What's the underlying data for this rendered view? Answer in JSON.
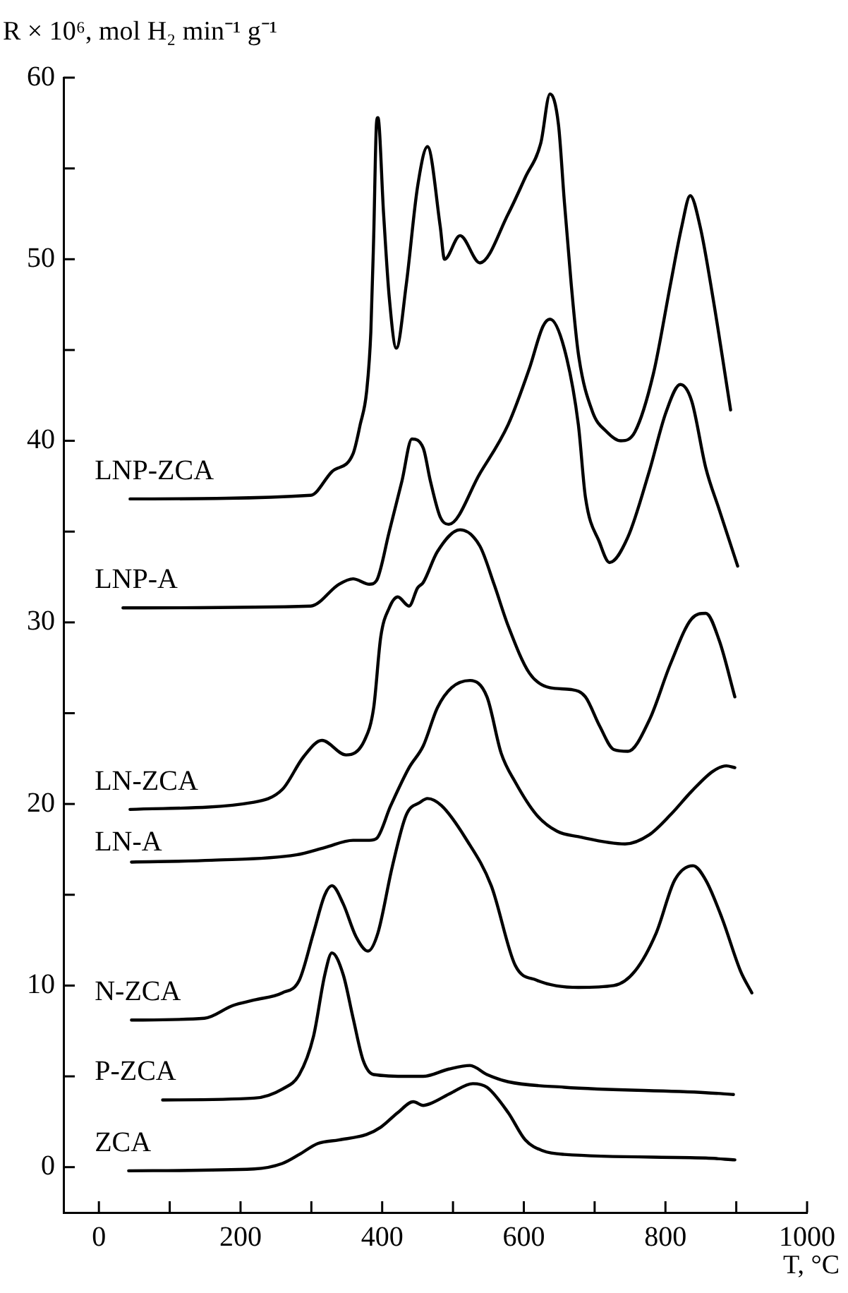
{
  "chart_data": {
    "type": "line",
    "xlabel": "T, °C",
    "ylabel": "R × 10⁶, mol H₂ min⁻¹ g⁻¹",
    "xlim": [
      -50,
      1000
    ],
    "ylim": [
      -2.5,
      60
    ],
    "xticks": [
      0,
      {
        "value": 100,
        "label": null
      },
      200,
      {
        "value": 300,
        "label": null
      },
      400,
      {
        "value": 500,
        "label": null
      },
      600,
      {
        "value": 700,
        "label": null
      },
      800,
      {
        "value": 900,
        "label": null
      },
      1000
    ],
    "yticks": [
      0,
      {
        "value": 5,
        "label": null
      },
      10,
      {
        "value": 15,
        "label": null
      },
      20,
      {
        "value": 25,
        "label": null
      },
      30,
      {
        "value": 35,
        "label": null
      },
      40,
      {
        "value": 45,
        "label": null
      },
      50,
      {
        "value": 55,
        "label": null
      },
      60
    ],
    "grid": false,
    "legend": false,
    "marker": "none",
    "line_style": "solid",
    "series": [
      {
        "name": "LNP-ZCA",
        "color": "#000000",
        "x": [
          44,
          299,
          329,
          359,
          369,
          378,
          384,
          388,
          392,
          394,
          402,
          410,
          420,
          434,
          450,
          464,
          482,
          488,
          510,
          538,
          578,
          602,
          624,
          637,
          649,
          657,
          667,
          677,
          697,
          717,
          737,
          757,
          783,
          807,
          823,
          835,
          849,
          867,
          892
        ],
        "values": [
          36.8,
          37.0,
          38.3,
          39.3,
          40.9,
          42.7,
          46,
          51.2,
          57.5,
          57.8,
          52.5,
          47.9,
          45.1,
          48.6,
          54,
          56.2,
          51.8,
          50.0,
          51.3,
          49.8,
          52.5,
          54.5,
          56.4,
          59.1,
          57.4,
          53.3,
          48.6,
          44.8,
          41.6,
          40.5,
          40.0,
          40.5,
          43.7,
          48.6,
          51.8,
          53.5,
          51.8,
          47.9,
          41.7
        ]
      },
      {
        "name": "LNP-A",
        "color": "#000000",
        "x": [
          34,
          299,
          339,
          359,
          382,
          392,
          410,
          428,
          442,
          458,
          468,
          482,
          494,
          538,
          578,
          608,
          627,
          637,
          657,
          677,
          687,
          707,
          721,
          747,
          777,
          801,
          821,
          837,
          857,
          876,
          902
        ],
        "values": [
          30.8,
          30.9,
          32.1,
          32.4,
          32.1,
          32.3,
          35.0,
          37.8,
          40.1,
          39.6,
          37.8,
          35.8,
          35.4,
          38.2,
          40.9,
          44,
          46.3,
          46.7,
          45.1,
          40.9,
          36.9,
          34.4,
          33.3,
          34.7,
          38.3,
          41.6,
          43.1,
          42.2,
          38.5,
          36.2,
          33.1
        ]
      },
      {
        "name": "LN-ZCA",
        "color": "#000000",
        "x": [
          44,
          219,
          259,
          289,
          315,
          349,
          375,
          388,
          398,
          410,
          422,
          438,
          450,
          458,
          478,
          510,
          538,
          558,
          578,
          608,
          637,
          667,
          687,
          707,
          727,
          747,
          777,
          807,
          837,
          857,
          876,
          898
        ],
        "values": [
          19.7,
          20.1,
          20.8,
          22.6,
          23.5,
          22.7,
          23.5,
          25.3,
          29.2,
          30.8,
          31.4,
          30.9,
          31.9,
          32.2,
          33.9,
          35.1,
          34.2,
          32.1,
          29.8,
          27.2,
          26.4,
          26.3,
          25.9,
          24.3,
          23.0,
          22.9,
          24.6,
          27.7,
          30.2,
          30.5,
          29.0,
          25.9
        ]
      },
      {
        "name": "LN-A",
        "color": "#000000",
        "x": [
          46,
          159,
          279,
          319,
          359,
          382,
          392,
          412,
          438,
          458,
          478,
          498,
          524,
          548,
          568,
          588,
          618,
          647,
          677,
          743,
          777,
          807,
          837,
          867,
          886,
          898
        ],
        "values": [
          16.8,
          16.9,
          17.2,
          17.6,
          18.0,
          18.0,
          18.1,
          19.9,
          22.0,
          23.2,
          25.3,
          26.4,
          26.8,
          25.9,
          22.8,
          21.2,
          19.4,
          18.5,
          18.2,
          17.8,
          18.3,
          19.4,
          20.7,
          21.8,
          22.1,
          22.0
        ]
      },
      {
        "name": "N-ZCA",
        "color": "#000000",
        "x": [
          46,
          149,
          189,
          219,
          259,
          283,
          303,
          319,
          329,
          345,
          363,
          380,
          394,
          414,
          434,
          454,
          464,
          484,
          518,
          554,
          588,
          618,
          677,
          727,
          757,
          787,
          813,
          839,
          857,
          880,
          906,
          922
        ],
        "values": [
          8.1,
          8.2,
          8.9,
          9.2,
          9.6,
          10.3,
          12.9,
          15.0,
          15.5,
          14.5,
          12.7,
          11.9,
          12.9,
          16.5,
          19.4,
          20.1,
          20.3,
          19.9,
          18.1,
          15.5,
          11.1,
          10.3,
          9.9,
          10.0,
          10.8,
          12.9,
          15.8,
          16.6,
          15.8,
          13.7,
          10.8,
          9.6
        ]
      },
      {
        "name": "P-ZCA",
        "color": "#000000",
        "x": [
          90,
          219,
          259,
          283,
          303,
          319,
          329,
          345,
          359,
          373,
          388,
          438,
          458,
          494,
          524,
          548,
          578,
          657,
          857,
          896
        ],
        "values": [
          3.7,
          3.8,
          4.3,
          5.1,
          7.2,
          10.6,
          11.8,
          10.6,
          8.2,
          5.9,
          5.1,
          5.0,
          5.0,
          5.4,
          5.6,
          5.1,
          4.7,
          4.4,
          4.1,
          4.0
        ]
      },
      {
        "name": "ZCA",
        "color": "#000000",
        "x": [
          42,
          219,
          259,
          283,
          309,
          339,
          378,
          398,
          422,
          444,
          458,
          468,
          498,
          528,
          548,
          578,
          602,
          627,
          657,
          857,
          898
        ],
        "values": [
          -0.2,
          -0.1,
          0.2,
          0.7,
          1.3,
          1.5,
          1.8,
          2.2,
          3.0,
          3.6,
          3.4,
          3.5,
          4.1,
          4.6,
          4.4,
          3.0,
          1.5,
          0.9,
          0.7,
          0.5,
          0.4
        ]
      }
    ]
  }
}
